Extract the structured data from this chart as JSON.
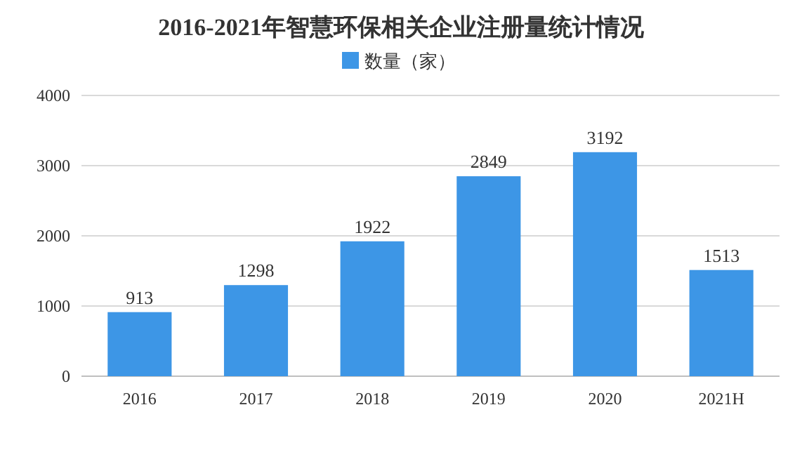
{
  "chart_data": {
    "type": "bar",
    "title": "2016-2021年智慧环保相关企业注册量统计情况",
    "categories": [
      "2016",
      "2017",
      "2018",
      "2019",
      "2020",
      "2021H"
    ],
    "series": [
      {
        "name": "数量（家）",
        "color": "#3d96e6",
        "values": [
          913,
          1298,
          1922,
          2849,
          3192,
          1513
        ]
      }
    ],
    "ylim": [
      0,
      4000
    ],
    "yticks": [
      0,
      1000,
      2000,
      3000,
      4000
    ],
    "grid": "y",
    "legend": "top",
    "data_labels": true
  }
}
